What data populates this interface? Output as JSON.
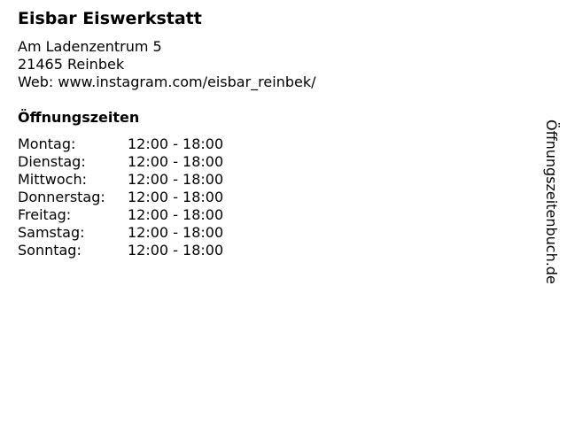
{
  "name": "Eisbar Eiswerkstatt",
  "address": {
    "street": "Am Ladenzentrum 5",
    "city": "21465 Reinbek",
    "web": "Web: www.instagram.com/eisbar_reinbek/"
  },
  "hours_title": "Öffnungszeiten",
  "hours": [
    {
      "day": "Montag:",
      "time": "12:00 - 18:00"
    },
    {
      "day": "Dienstag:",
      "time": "12:00 - 18:00"
    },
    {
      "day": "Mittwoch:",
      "time": "12:00 - 18:00"
    },
    {
      "day": "Donnerstag:",
      "time": "12:00 - 18:00"
    },
    {
      "day": "Freitag:",
      "time": "12:00 - 18:00"
    },
    {
      "day": "Samstag:",
      "time": "12:00 - 18:00"
    },
    {
      "day": "Sonntag:",
      "time": "12:00 - 18:00"
    }
  ],
  "watermark": "Öffnungszeitenbuch.de"
}
